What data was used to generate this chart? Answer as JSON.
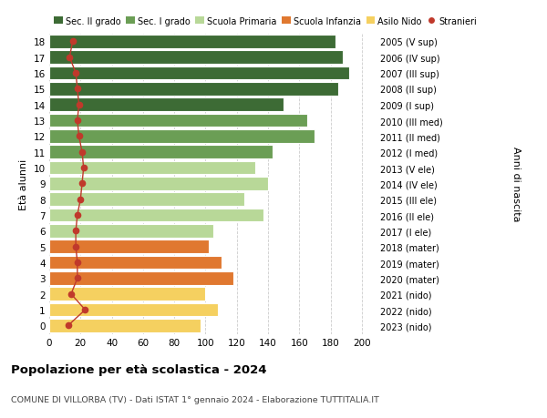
{
  "ages": [
    18,
    17,
    16,
    15,
    14,
    13,
    12,
    11,
    10,
    9,
    8,
    7,
    6,
    5,
    4,
    3,
    2,
    1,
    0
  ],
  "years": [
    "2005 (V sup)",
    "2006 (IV sup)",
    "2007 (III sup)",
    "2008 (II sup)",
    "2009 (I sup)",
    "2010 (III med)",
    "2011 (II med)",
    "2012 (I med)",
    "2013 (V ele)",
    "2014 (IV ele)",
    "2015 (III ele)",
    "2016 (II ele)",
    "2017 (I ele)",
    "2018 (mater)",
    "2019 (mater)",
    "2020 (mater)",
    "2021 (nido)",
    "2022 (nido)",
    "2023 (nido)"
  ],
  "bar_values": [
    183,
    188,
    192,
    185,
    150,
    165,
    170,
    143,
    132,
    140,
    125,
    137,
    105,
    102,
    110,
    118,
    100,
    108,
    97
  ],
  "stranieri": [
    15,
    13,
    17,
    18,
    19,
    18,
    19,
    21,
    22,
    21,
    20,
    18,
    17,
    17,
    18,
    18,
    14,
    23,
    12
  ],
  "bar_colors": [
    "#3d6b35",
    "#3d6b35",
    "#3d6b35",
    "#3d6b35",
    "#3d6b35",
    "#6b9e55",
    "#6b9e55",
    "#6b9e55",
    "#b8d898",
    "#b8d898",
    "#b8d898",
    "#b8d898",
    "#b8d898",
    "#e07830",
    "#e07830",
    "#e07830",
    "#f5d060",
    "#f5d060",
    "#f5d060"
  ],
  "legend_labels": [
    "Sec. II grado",
    "Sec. I grado",
    "Scuola Primaria",
    "Scuola Infanzia",
    "Asilo Nido",
    "Stranieri"
  ],
  "legend_colors": [
    "#3d6b35",
    "#6b9e55",
    "#b8d898",
    "#e07830",
    "#f5d060",
    "#c0392b"
  ],
  "stranieri_color": "#c0392b",
  "title": "Popolazione per età scolastica - 2024",
  "subtitle": "COMUNE DI VILLORBA (TV) - Dati ISTAT 1° gennaio 2024 - Elaborazione TUTTITALIA.IT",
  "ylabel_left": "Età alunni",
  "ylabel_right": "Anni di nascita",
  "xticks": [
    0,
    20,
    40,
    60,
    80,
    100,
    120,
    140,
    160,
    180,
    200
  ],
  "xlim": [
    0,
    210
  ],
  "ylim": [
    -0.55,
    18.55
  ],
  "bg_color": "#ffffff",
  "grid_color": "#cccccc"
}
